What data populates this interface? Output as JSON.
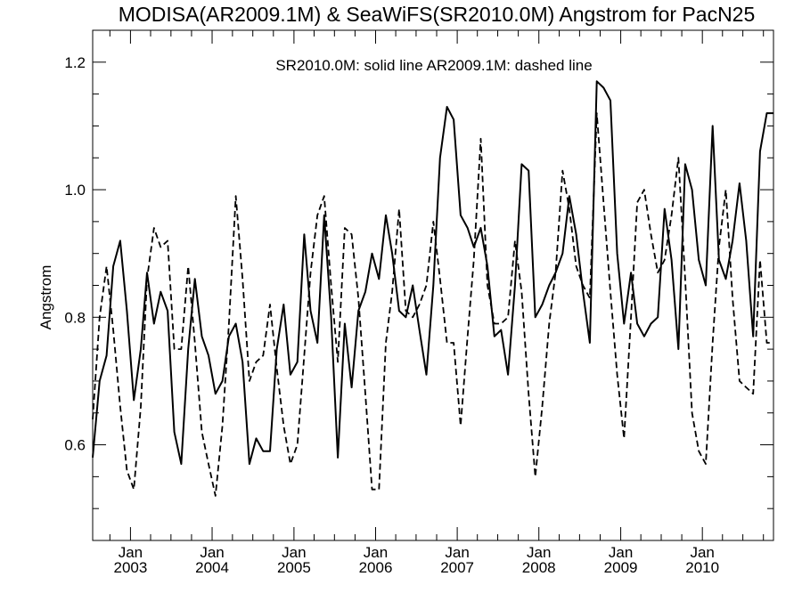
{
  "chart_data": {
    "type": "line",
    "title": "MODISA(AR2009.1M) & SeaWiFS(SR2010.0M)  Angstrom for PacN25",
    "annotation": "SR2010.0M: solid line   AR2009.1M: dashed line",
    "xlabel": "",
    "ylabel": "Angstrom",
    "ylim": [
      0.45,
      1.25
    ],
    "xlim": [
      "2002-07-16",
      "2010-11-15"
    ],
    "x_ticks": [
      {
        "month": "Jan",
        "year": "2003",
        "date": "2003-01-01"
      },
      {
        "month": "Jan",
        "year": "2004",
        "date": "2004-01-01"
      },
      {
        "month": "Jan",
        "year": "2005",
        "date": "2005-01-01"
      },
      {
        "month": "Jan",
        "year": "2006",
        "date": "2006-01-01"
      },
      {
        "month": "Jan",
        "year": "2007",
        "date": "2007-01-01"
      },
      {
        "month": "Jan",
        "year": "2008",
        "date": "2008-01-01"
      },
      {
        "month": "Jan",
        "year": "2009",
        "date": "2009-01-01"
      },
      {
        "month": "Jan",
        "year": "2010",
        "date": "2010-01-01"
      }
    ],
    "y_ticks": [
      "0.6",
      "0.8",
      "1.0",
      "1.2"
    ],
    "y_tick_values": [
      0.6,
      0.8,
      1.0,
      1.2
    ],
    "grid": false,
    "series": [
      {
        "style": "solid",
        "x": [
          "2002-07-16",
          "2002-08-16",
          "2002-09-16",
          "2002-10-16",
          "2002-11-16",
          "2002-12-16",
          "2003-01-16",
          "2003-02-16",
          "2003-03-16",
          "2003-04-16",
          "2003-05-16",
          "2003-06-16",
          "2003-07-16",
          "2003-08-16",
          "2003-09-16",
          "2003-10-16",
          "2003-11-16",
          "2003-12-16",
          "2004-01-16",
          "2004-02-16",
          "2004-03-16",
          "2004-04-16",
          "2004-05-16",
          "2004-06-16",
          "2004-07-16",
          "2004-08-16",
          "2004-09-16",
          "2004-10-16",
          "2004-11-16",
          "2004-12-16",
          "2005-01-16",
          "2005-02-16",
          "2005-03-16",
          "2005-04-16",
          "2005-05-16",
          "2005-06-16",
          "2005-07-16",
          "2005-08-16",
          "2005-09-16",
          "2005-10-16",
          "2005-11-16",
          "2005-12-16",
          "2006-01-16",
          "2006-02-16",
          "2006-03-16",
          "2006-04-16",
          "2006-05-16",
          "2006-06-16",
          "2006-07-16",
          "2006-08-16",
          "2006-09-16",
          "2006-10-16",
          "2006-11-16",
          "2006-12-16",
          "2007-01-16",
          "2007-02-16",
          "2007-03-16",
          "2007-04-16",
          "2007-05-16",
          "2007-06-16",
          "2007-07-16",
          "2007-08-16",
          "2007-09-16",
          "2007-10-16",
          "2007-11-16",
          "2007-12-16",
          "2008-01-16",
          "2008-02-16",
          "2008-03-16",
          "2008-04-16",
          "2008-05-16",
          "2008-06-16",
          "2008-07-16",
          "2008-08-16",
          "2008-09-16",
          "2008-10-16",
          "2008-11-16",
          "2008-12-16",
          "2009-01-16",
          "2009-02-16",
          "2009-03-16",
          "2009-04-16",
          "2009-05-16",
          "2009-06-16",
          "2009-07-16",
          "2009-08-16",
          "2009-09-16",
          "2009-10-16",
          "2009-11-16",
          "2009-12-16",
          "2010-01-16",
          "2010-02-16",
          "2010-03-16",
          "2010-04-16",
          "2010-05-16",
          "2010-06-16",
          "2010-07-16",
          "2010-08-16",
          "2010-09-16",
          "2010-10-16",
          "2010-11-16"
        ],
        "values": [
          0.58,
          0.7,
          0.74,
          0.88,
          0.92,
          0.81,
          0.67,
          0.75,
          0.87,
          0.79,
          0.84,
          0.81,
          0.62,
          0.57,
          0.75,
          0.86,
          0.77,
          0.74,
          0.68,
          0.7,
          0.77,
          0.79,
          0.73,
          0.57,
          0.61,
          0.59,
          0.59,
          0.75,
          0.82,
          0.71,
          0.73,
          0.93,
          0.81,
          0.76,
          0.96,
          0.8,
          0.58,
          0.79,
          0.69,
          0.81,
          0.84,
          0.9,
          0.86,
          0.96,
          0.9,
          0.81,
          0.8,
          0.85,
          0.78,
          0.71,
          0.85,
          1.05,
          1.13,
          1.11,
          0.96,
          0.94,
          0.91,
          0.94,
          0.88,
          0.77,
          0.78,
          0.71,
          0.85,
          1.04,
          1.03,
          0.8,
          0.82,
          0.85,
          0.87,
          0.9,
          0.99,
          0.93,
          0.84,
          0.76,
          1.17,
          1.16,
          1.14,
          0.9,
          0.79,
          0.87,
          0.79,
          0.77,
          0.79,
          0.8,
          0.97,
          0.89,
          0.75,
          1.04,
          1.0,
          0.89,
          0.85,
          1.1,
          0.89,
          0.86,
          0.92,
          1.01,
          0.92,
          0.77,
          1.06,
          1.12,
          1.12
        ]
      },
      {
        "style": "dashed",
        "x": [
          "2002-07-16",
          "2002-08-16",
          "2002-09-16",
          "2002-10-16",
          "2002-11-16",
          "2002-12-16",
          "2003-01-16",
          "2003-02-16",
          "2003-03-16",
          "2003-04-16",
          "2003-05-16",
          "2003-06-16",
          "2003-07-16",
          "2003-08-16",
          "2003-09-16",
          "2003-10-16",
          "2003-11-16",
          "2003-12-16",
          "2004-01-16",
          "2004-02-16",
          "2004-03-16",
          "2004-04-16",
          "2004-05-16",
          "2004-06-16",
          "2004-07-16",
          "2004-08-16",
          "2004-09-16",
          "2004-10-16",
          "2004-11-16",
          "2004-12-16",
          "2005-01-16",
          "2005-02-16",
          "2005-03-16",
          "2005-04-16",
          "2005-05-16",
          "2005-06-16",
          "2005-07-16",
          "2005-08-16",
          "2005-09-16",
          "2005-10-16",
          "2005-11-16",
          "2005-12-16",
          "2006-01-16",
          "2006-02-16",
          "2006-03-16",
          "2006-04-16",
          "2006-05-16",
          "2006-06-16",
          "2006-07-16",
          "2006-08-16",
          "2006-09-16",
          "2006-10-16",
          "2006-11-16",
          "2006-12-16",
          "2007-01-16",
          "2007-02-16",
          "2007-03-16",
          "2007-04-16",
          "2007-05-16",
          "2007-06-16",
          "2007-07-16",
          "2007-08-16",
          "2007-09-16",
          "2007-10-16",
          "2007-11-16",
          "2007-12-16",
          "2008-01-16",
          "2008-02-16",
          "2008-03-16",
          "2008-04-16",
          "2008-05-16",
          "2008-06-16",
          "2008-07-16",
          "2008-08-16",
          "2008-09-16",
          "2008-10-16",
          "2008-11-16",
          "2008-12-16",
          "2009-01-16",
          "2009-02-16",
          "2009-03-16",
          "2009-04-16",
          "2009-05-16",
          "2009-06-16",
          "2009-07-16",
          "2009-08-16",
          "2009-09-16",
          "2009-10-16",
          "2009-11-16",
          "2009-12-16",
          "2010-01-16",
          "2010-02-16",
          "2010-03-16",
          "2010-04-16",
          "2010-05-16",
          "2010-06-16",
          "2010-07-16",
          "2010-08-16",
          "2010-09-16",
          "2010-10-16",
          "2010-11-16"
        ],
        "values": [
          0.64,
          0.8,
          0.88,
          0.78,
          0.66,
          0.56,
          0.53,
          0.66,
          0.86,
          0.94,
          0.91,
          0.92,
          0.75,
          0.75,
          0.88,
          0.76,
          0.62,
          0.57,
          0.52,
          0.63,
          0.79,
          0.99,
          0.86,
          0.7,
          0.73,
          0.74,
          0.82,
          0.72,
          0.63,
          0.57,
          0.6,
          0.74,
          0.87,
          0.96,
          0.99,
          0.85,
          0.73,
          0.94,
          0.93,
          0.83,
          0.68,
          0.53,
          0.53,
          0.76,
          0.84,
          0.97,
          0.81,
          0.8,
          0.82,
          0.85,
          0.95,
          0.86,
          0.76,
          0.76,
          0.63,
          0.77,
          0.89,
          1.08,
          0.85,
          0.79,
          0.79,
          0.8,
          0.92,
          0.84,
          0.68,
          0.55,
          0.66,
          0.79,
          0.87,
          1.03,
          0.97,
          0.88,
          0.85,
          0.83,
          1.12,
          0.98,
          0.84,
          0.71,
          0.61,
          0.8,
          0.98,
          1.0,
          0.93,
          0.87,
          0.89,
          0.96,
          1.05,
          0.86,
          0.65,
          0.59,
          0.57,
          0.76,
          0.91,
          1.0,
          0.83,
          0.7,
          0.69,
          0.68,
          0.89,
          0.76,
          0.76
        ]
      }
    ]
  }
}
